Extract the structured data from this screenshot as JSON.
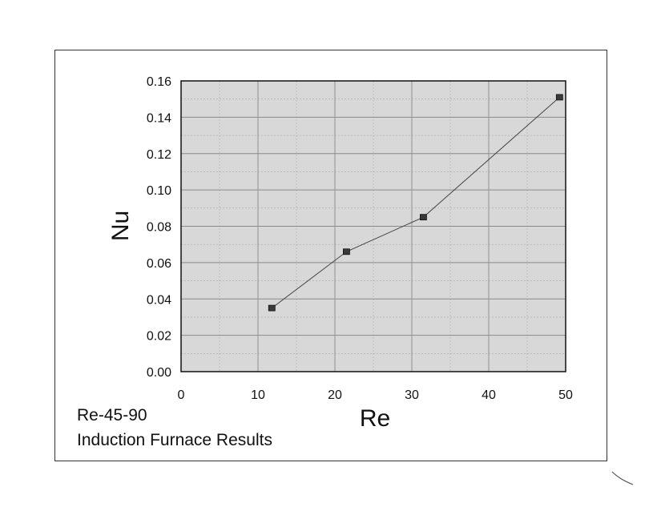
{
  "chart_data": {
    "type": "line",
    "xlabel": "Re",
    "ylabel": "Nu",
    "xlim": [
      0,
      50
    ],
    "ylim": [
      0,
      0.16
    ],
    "x_ticks": [
      "0",
      "10",
      "20",
      "30",
      "40",
      "50"
    ],
    "y_ticks": [
      "0.00",
      "0.02",
      "0.04",
      "0.06",
      "0.08",
      "0.10",
      "0.12",
      "0.14",
      "0.16"
    ],
    "grid": true,
    "grid_minor": true,
    "plot_background": "#d8d8d8",
    "line_color": "#444444",
    "marker": "square",
    "series": [
      {
        "x": [
          11.8,
          21.5,
          31.5,
          49.2
        ],
        "y": [
          0.035,
          0.066,
          0.085,
          0.151
        ]
      }
    ]
  },
  "captions": {
    "line1": "Re-45-90",
    "line2": "Induction Furnace Results"
  }
}
